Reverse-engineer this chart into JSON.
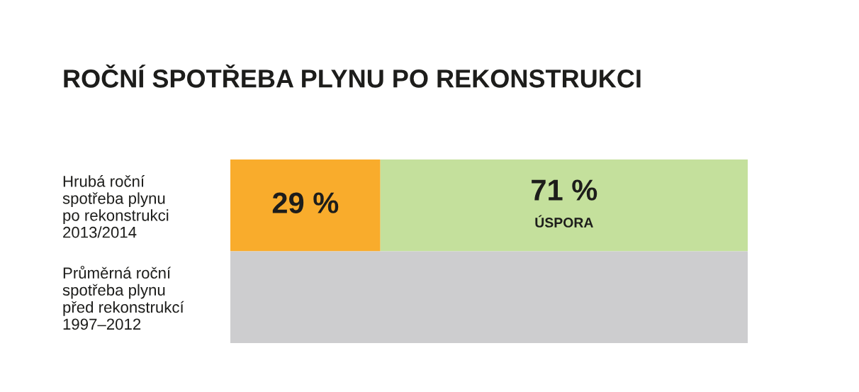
{
  "chart_data": {
    "type": "bar",
    "orientation": "horizontal",
    "stacked": true,
    "tick_labels": "y",
    "title": "ROČNÍ SPOTŘEBA PLYNU PO REKONSTRUKCI",
    "categories": [
      "Hrubá roční\nspotřeba plynu\npo rekonstrukci\n2013/2014",
      "Průměrná roční\nspotřeba plynu\npřed rekonstrukcí\n1997–2012"
    ],
    "series": [
      {
        "color": "#f9ac2c",
        "values": [
          29,
          null
        ],
        "value_labels": [
          "29 %",
          null
        ]
      },
      {
        "name": "ÚSPORA",
        "color": "#c4e09c",
        "values": [
          71,
          null
        ],
        "value_labels": [
          "71 %",
          null
        ]
      },
      {
        "color": "#cdcdcf",
        "values": [
          null,
          100
        ]
      }
    ]
  }
}
